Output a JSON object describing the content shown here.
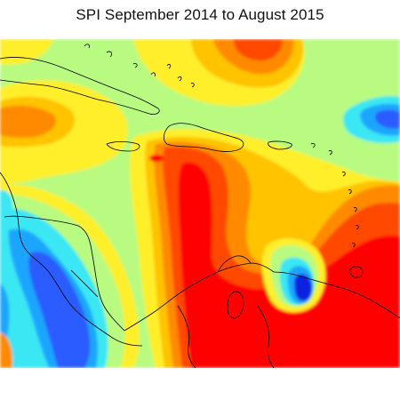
{
  "title": "SPI September 2014 to August 2015",
  "colors": {
    "extreme_dry": "#ff0000",
    "very_dry": "#ff4a00",
    "moderately_dry": "#ff8a00",
    "dry": "#ffc300",
    "slightly_dry": "#ffee2a",
    "near_normal": "#b8fb80",
    "slightly_wet": "#3be7f3",
    "moderately_wet": "#1aa5ff",
    "very_wet": "#2a5cff",
    "extreme_wet": "#1022e0",
    "coastline": "#000000",
    "background": "#ffffff"
  }
}
